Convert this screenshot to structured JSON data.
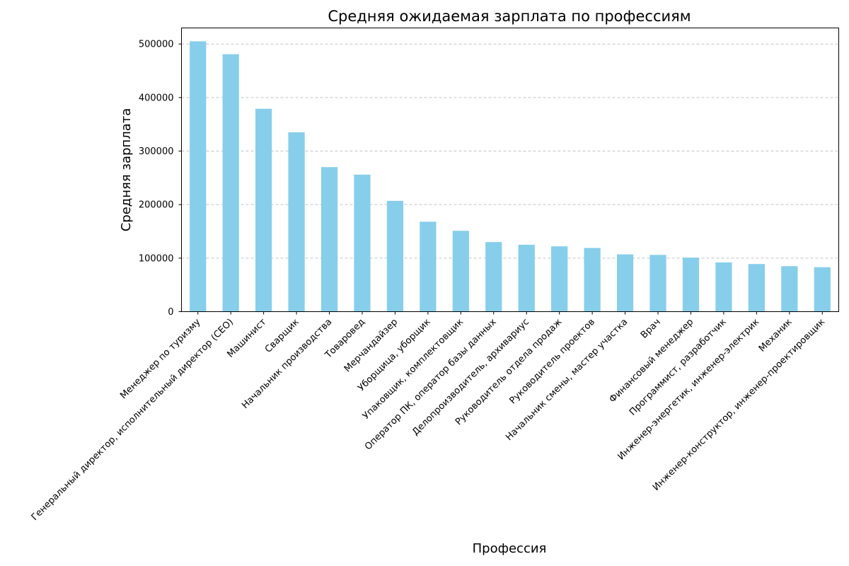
{
  "chart_data": {
    "type": "bar",
    "title": "Средняя ожидаемая зарплата по профессиям",
    "xlabel": "Профессия",
    "ylabel": "Средняя зарплата",
    "categories": [
      "Менеджер по туризму",
      "Генеральный директор, исполнительный директор (CEO)",
      "Машинист",
      "Сварщик",
      "Начальник производства",
      "Товаровед",
      "Мерчандайзер",
      "Уборщица, уборщик",
      "Упаковщик, комплектовщик",
      "Оператор ПК, оператор базы данных",
      "Делопроизводитель, архивариус",
      "Руководитель отдела продаж",
      "Руководитель проектов",
      "Начальник смены, мастер участка",
      "Врач",
      "Финансовый менеджер",
      "Программист, разработчик",
      "Инженер-энергетик, инженер-электрик",
      "Механик",
      "Инженер-конструктор, инженер-проектировщик"
    ],
    "values": [
      505000,
      481000,
      379000,
      335000,
      270000,
      256000,
      207000,
      168000,
      151000,
      130000,
      125000,
      122000,
      119000,
      107000,
      106000,
      101000,
      92000,
      89000,
      85000,
      83000
    ],
    "ylim": [
      0,
      530000
    ],
    "yticks": [
      0,
      100000,
      200000,
      300000,
      400000,
      500000
    ],
    "ytick_labels": [
      "0",
      "100000",
      "200000",
      "300000",
      "400000",
      "500000"
    ],
    "grid": "horizontal dashed",
    "bar_color": "#87ceeb"
  }
}
